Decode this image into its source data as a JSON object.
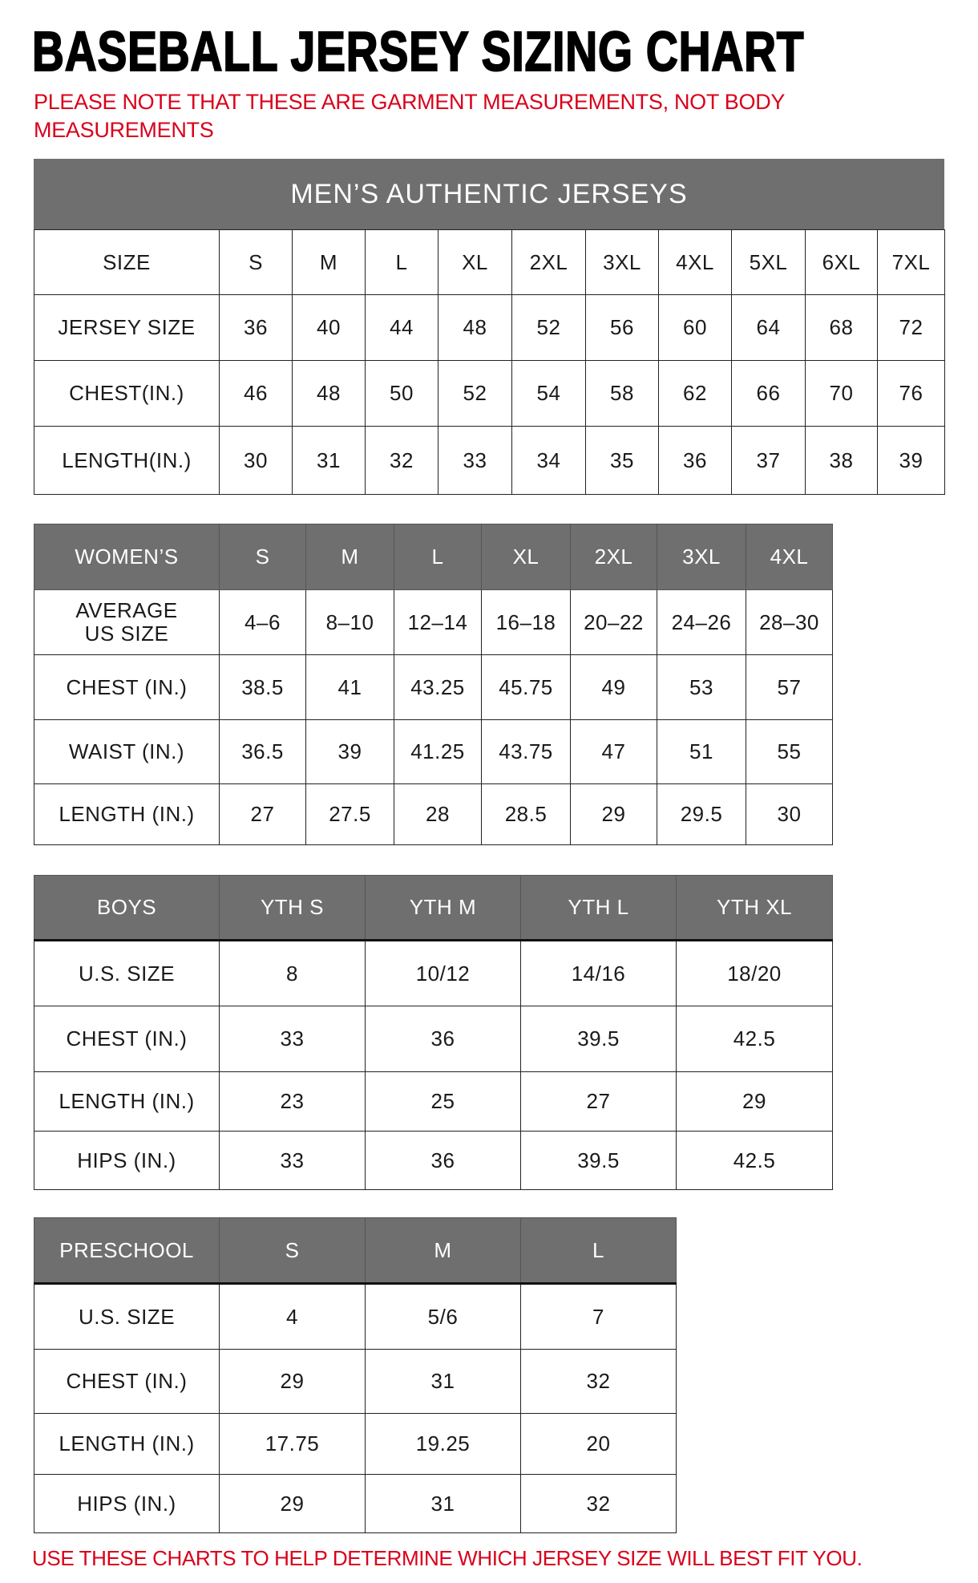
{
  "title": "BASEBALL JERSEY SIZING CHART",
  "note": "PLEASE NOTE THAT THESE ARE GARMENT MEASUREMENTS, NOT BODY MEASUREMENTS",
  "footer": "USE THESE CHARTS TO HELP DETERMINE WHICH JERSEY SIZE WILL BEST FIT YOU.",
  "colors": {
    "header_gray": "#6f6f6f",
    "note_red": "#d9001b"
  },
  "mens": {
    "title": "MEN’S AUTHENTIC JERSEYS",
    "rows": [
      [
        "SIZE",
        "S",
        "M",
        "L",
        "XL",
        "2XL",
        "3XL",
        "4XL",
        "5XL",
        "6XL",
        "7XL"
      ],
      [
        "JERSEY SIZE",
        "36",
        "40",
        "44",
        "48",
        "52",
        "56",
        "60",
        "64",
        "68",
        "72"
      ],
      [
        "CHEST(IN.)",
        "46",
        "48",
        "50",
        "52",
        "54",
        "58",
        "62",
        "66",
        "70",
        "76"
      ],
      [
        "LENGTH(IN.)",
        "30",
        "31",
        "32",
        "33",
        "34",
        "35",
        "36",
        "37",
        "38",
        "39"
      ]
    ]
  },
  "womens": {
    "header": [
      "WOMEN’S",
      "S",
      "M",
      "L",
      "XL",
      "2XL",
      "3XL",
      "4XL"
    ],
    "rows": [
      [
        "AVERAGE\nUS SIZE",
        "4–6",
        "8–10",
        "12–14",
        "16–18",
        "20–22",
        "24–26",
        "28–30"
      ],
      [
        "CHEST (IN.)",
        "38.5",
        "41",
        "43.25",
        "45.75",
        "49",
        "53",
        "57"
      ],
      [
        "WAIST (IN.)",
        "36.5",
        "39",
        "41.25",
        "43.75",
        "47",
        "51",
        "55"
      ],
      [
        "LENGTH (IN.)",
        "27",
        "27.5",
        "28",
        "28.5",
        "29",
        "29.5",
        "30"
      ]
    ]
  },
  "boys": {
    "header": [
      "BOYS",
      "YTH S",
      "YTH M",
      "YTH L",
      "YTH XL"
    ],
    "rows": [
      [
        "U.S. SIZE",
        "8",
        "10/12",
        "14/16",
        "18/20"
      ],
      [
        "CHEST (IN.)",
        "33",
        "36",
        "39.5",
        "42.5"
      ],
      [
        "LENGTH (IN.)",
        "23",
        "25",
        "27",
        "29"
      ],
      [
        "HIPS (IN.)",
        "33",
        "36",
        "39.5",
        "42.5"
      ]
    ]
  },
  "preschool": {
    "header": [
      "PRESCHOOL",
      "S",
      "M",
      "L"
    ],
    "rows": [
      [
        "U.S. SIZE",
        "4",
        "5/6",
        "7"
      ],
      [
        "CHEST (IN.)",
        "29",
        "31",
        "32"
      ],
      [
        "LENGTH (IN.)",
        "17.75",
        "19.25",
        "20"
      ],
      [
        "HIPS (IN.)",
        "29",
        "31",
        "32"
      ]
    ]
  }
}
